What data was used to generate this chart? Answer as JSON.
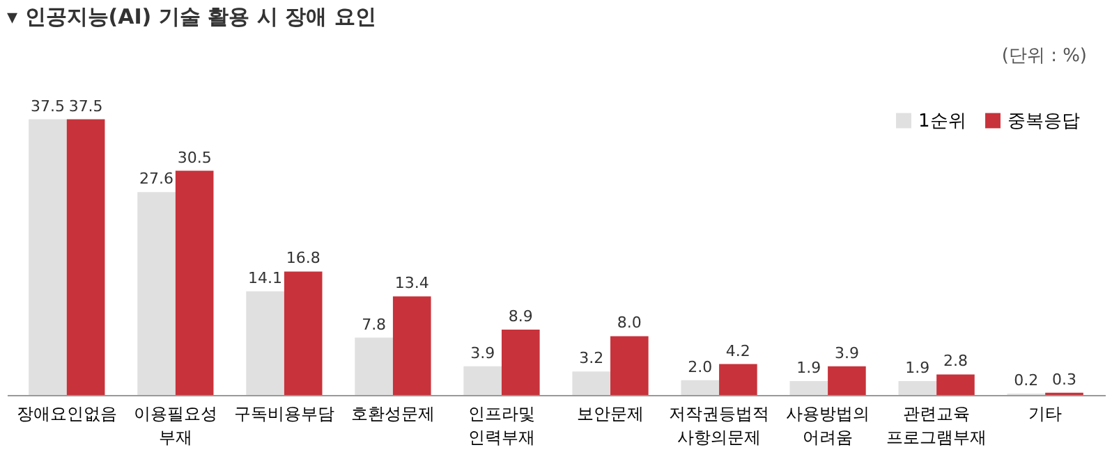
{
  "chart_data": {
    "type": "bar",
    "title": "▾ 인공지능(AI) 기술 활용 시 장애 요인",
    "annotations": [
      "(단위 : %)"
    ],
    "categories": [
      "장애요인없음",
      "이용필요성 부재",
      "구독비용부담",
      "호환성문제",
      "인프라및 인력부재",
      "보안문제",
      "저작권등법적 사항의문제",
      "사용방법의 어려움",
      "관련교육 프로그램부재",
      "기타"
    ],
    "series": [
      {
        "name": "1순위",
        "color": "#e0e0e0",
        "values": [
          37.5,
          27.6,
          14.1,
          7.8,
          3.9,
          3.2,
          2.0,
          1.9,
          1.9,
          0.2
        ],
        "value_labels": [
          "37.5",
          "27.6",
          "14.1",
          "7.8",
          "3.9",
          "3.2",
          "2.0",
          "1.9",
          "1.9",
          "0.2"
        ]
      },
      {
        "name": "중복응답",
        "color": "#c8323a",
        "values": [
          37.5,
          30.5,
          16.8,
          13.4,
          8.9,
          8.0,
          4.2,
          3.9,
          2.8,
          0.3
        ],
        "value_labels": [
          "37.5",
          "30.5",
          "16.8",
          "13.4",
          "8.9",
          "8.0",
          "4.2",
          "3.9",
          "2.8",
          "0.3"
        ]
      }
    ],
    "legend": "top right",
    "grid": false
  }
}
